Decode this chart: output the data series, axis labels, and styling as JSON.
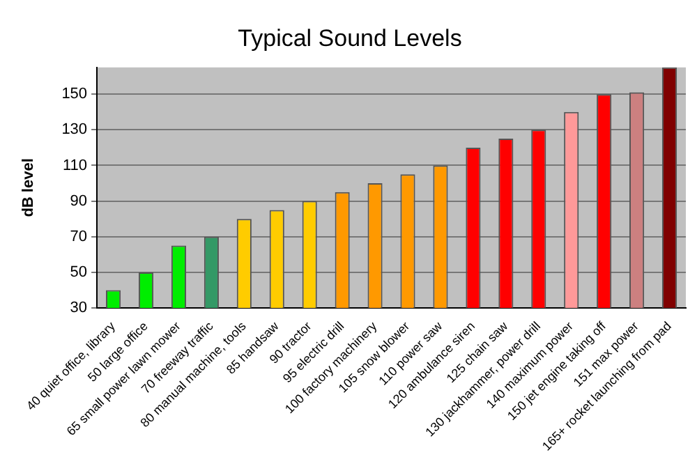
{
  "chart_data": {
    "type": "bar",
    "title": "Typical Sound Levels",
    "ylabel": "dB level",
    "categories": [
      "40 quiet office, library",
      "50 large office",
      "65 small power lawn mower",
      "70 freeway traffic",
      "80 manual machine, tools",
      "85 handsaw",
      "90 tractor",
      "95 electric drill",
      "100 factory machinery",
      "105 snow blower",
      "110 power saw",
      "120 ambulance siren",
      "125 chain saw",
      "130 jackhammer, power drill",
      "140 maximum power",
      "150 jet engine taking off",
      "151 max power",
      "165+ rocket launching from pad"
    ],
    "values": [
      40,
      50,
      65,
      70,
      80,
      85,
      90,
      95,
      100,
      105,
      110,
      120,
      125,
      130,
      140,
      150,
      151,
      165
    ],
    "colors": [
      "#00ee00",
      "#00ee00",
      "#00ee00",
      "#339966",
      "#ffcc00",
      "#ffcc00",
      "#ffcc00",
      "#ff9900",
      "#ff9900",
      "#ff9900",
      "#ff9900",
      "#ff0000",
      "#ff0000",
      "#ff0000",
      "#ff9999",
      "#ff0000",
      "#cc8080",
      "#800000"
    ],
    "ylim": [
      30,
      165
    ],
    "yticks": [
      30,
      50,
      70,
      90,
      110,
      130,
      150
    ],
    "grid": "y",
    "legend": false
  }
}
